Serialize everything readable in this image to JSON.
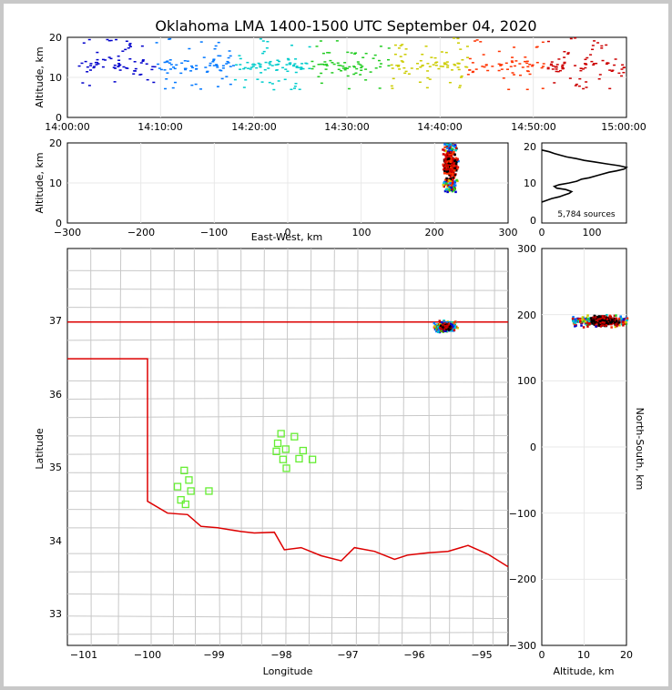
{
  "chart_data": {
    "type": "scatter",
    "title": "Oklahoma LMA 1400-1500 UTC September 04, 2020",
    "source_count_label": "5,784 sources",
    "colormap": [
      "#0000cc",
      "#0077ff",
      "#00cccc",
      "#22cc22",
      "#cccc00",
      "#ff3300",
      "#cc0000",
      "#ffffff",
      "#000000"
    ],
    "time_height": {
      "ylabel": "Altitude, km",
      "xlim": [
        "14:00:00",
        "15:00:00"
      ],
      "xticks": [
        "14:00:00",
        "14:10:00",
        "14:20:00",
        "14:30:00",
        "14:40:00",
        "14:50:00",
        "15:00:00"
      ],
      "ylim": [
        0,
        20
      ],
      "yticks": [
        "0",
        "10",
        "20"
      ]
    },
    "ew_height": {
      "xlabel": "East-West, km",
      "ylabel": "Altitude, km",
      "xlim": [
        -300,
        300
      ],
      "xticks": [
        "−300",
        "−200",
        "−100",
        "0",
        "100",
        "200",
        "300"
      ],
      "ylim": [
        0,
        20
      ],
      "yticks": [
        "0",
        "10",
        "20"
      ],
      "cluster": {
        "x_range": [
          195,
          245
        ],
        "alt_range": [
          7,
          20
        ]
      }
    },
    "histogram": {
      "xlim": [
        0,
        170
      ],
      "xticks": [
        "0",
        "100"
      ],
      "yticks": [
        "0",
        "10",
        "20"
      ],
      "profile": [
        [
          0,
          5
        ],
        [
          20,
          6
        ],
        [
          35,
          6.5
        ],
        [
          45,
          7
        ],
        [
          55,
          7.5
        ],
        [
          60,
          8
        ],
        [
          48,
          8.6
        ],
        [
          30,
          9
        ],
        [
          25,
          9.5
        ],
        [
          35,
          10
        ],
        [
          55,
          10.5
        ],
        [
          70,
          11
        ],
        [
          80,
          11.6
        ],
        [
          95,
          12
        ],
        [
          110,
          12.6
        ],
        [
          120,
          13
        ],
        [
          135,
          13.6
        ],
        [
          150,
          14
        ],
        [
          165,
          14.5
        ],
        [
          170,
          15
        ],
        [
          155,
          15.5
        ],
        [
          130,
          16
        ],
        [
          105,
          16.6
        ],
        [
          85,
          17
        ],
        [
          70,
          17.5
        ],
        [
          50,
          18
        ],
        [
          35,
          18.6
        ],
        [
          25,
          19
        ],
        [
          15,
          19.5
        ],
        [
          0,
          20
        ]
      ]
    },
    "plan_view": {
      "xlabel": "Longitude",
      "ylabel": "Latitude",
      "xlim": [
        -101.2,
        -94.6
      ],
      "xticks": [
        "−101",
        "−100",
        "−99",
        "−98",
        "−97",
        "−96",
        "−95"
      ],
      "ylim": [
        32.6,
        38.0
      ],
      "yticks": [
        "33",
        "34",
        "35",
        "36",
        "37"
      ],
      "cluster_center": [
        -95.55,
        36.95
      ],
      "stations": [
        [
          -99.45,
          34.98
        ],
        [
          -99.38,
          34.85
        ],
        [
          -99.55,
          34.76
        ],
        [
          -99.35,
          34.7
        ],
        [
          -99.08,
          34.7
        ],
        [
          -99.5,
          34.58
        ],
        [
          -99.43,
          34.52
        ],
        [
          -98.0,
          35.48
        ],
        [
          -97.8,
          35.44
        ],
        [
          -98.05,
          35.35
        ],
        [
          -97.93,
          35.27
        ],
        [
          -98.07,
          35.24
        ],
        [
          -97.67,
          35.25
        ],
        [
          -97.97,
          35.13
        ],
        [
          -97.73,
          35.14
        ],
        [
          -97.53,
          35.13
        ],
        [
          -97.92,
          35.01
        ]
      ]
    },
    "ns_altitude": {
      "xlabel": "Altitude, km",
      "ylabel": "North-South, km",
      "xlim": [
        0,
        20
      ],
      "xticks": [
        "0",
        "10",
        "20"
      ],
      "ylim": [
        -300,
        300
      ],
      "yticks": [
        "300",
        "200",
        "100",
        "0",
        "−100",
        "−200",
        "−300"
      ],
      "cluster": {
        "alt_range": [
          7,
          20
        ],
        "y_range": [
          170,
          215
        ]
      }
    }
  }
}
